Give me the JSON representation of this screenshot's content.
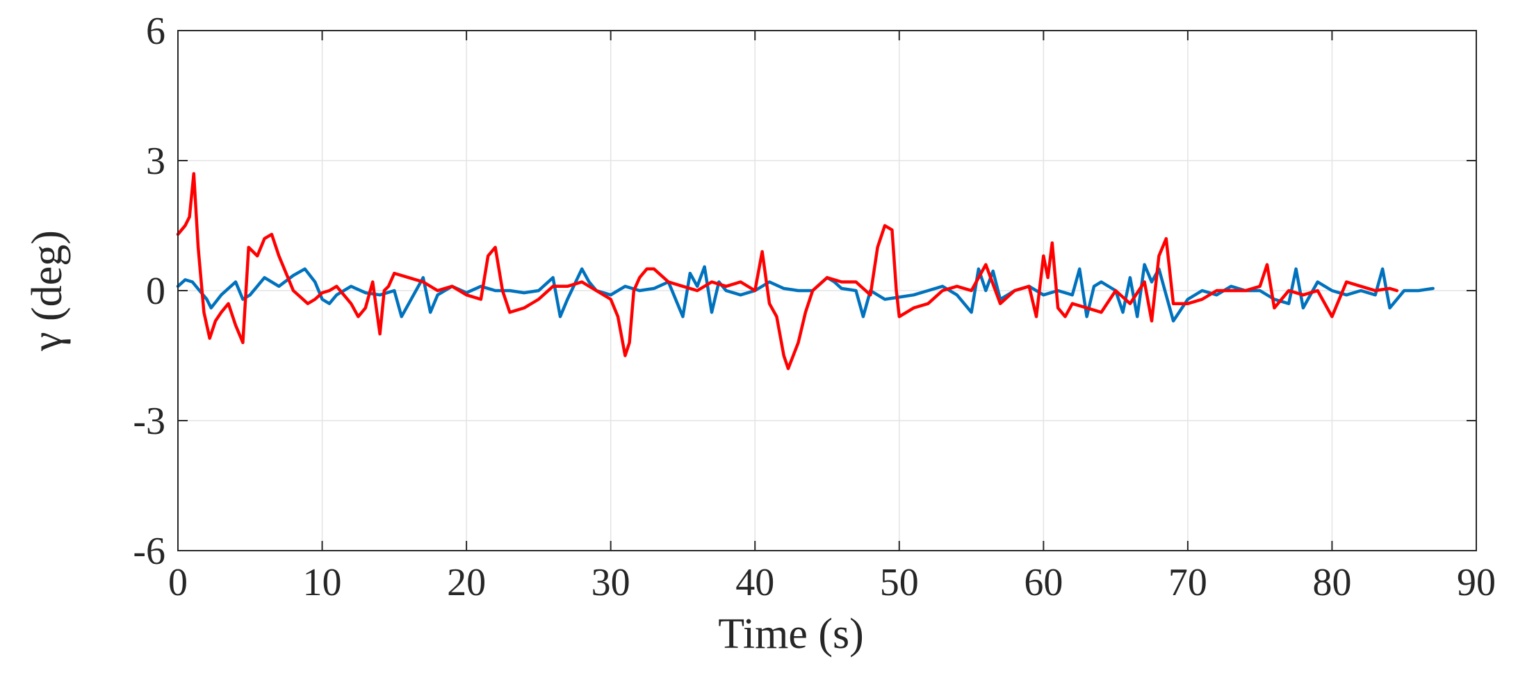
{
  "chart_data": {
    "type": "line",
    "title": "",
    "xlabel": "Time (s)",
    "ylabel": "γ (deg)",
    "xlim": [
      0,
      90
    ],
    "ylim": [
      -6,
      6
    ],
    "xticks": [
      0,
      10,
      20,
      30,
      40,
      50,
      60,
      70,
      80,
      90
    ],
    "yticks": [
      -6,
      -3,
      0,
      3,
      6
    ],
    "xtick_labels": [
      "0",
      "10",
      "20",
      "30",
      "40",
      "50",
      "60",
      "70",
      "80",
      "90"
    ],
    "ytick_labels": [
      "-6",
      "-3",
      "0",
      "3",
      "6"
    ],
    "grid": true,
    "series": [
      {
        "name": "blue",
        "color": "#0072BD",
        "x": [
          0,
          0.5,
          1,
          1.5,
          2,
          2.3,
          3,
          4,
          4.5,
          5,
          6,
          7,
          8,
          8.8,
          9.5,
          10,
          10.5,
          11,
          12,
          13,
          14,
          15,
          15.5,
          16,
          17,
          17.5,
          18,
          19,
          20,
          21,
          22,
          23,
          24,
          25,
          26,
          26.5,
          27,
          28,
          28.5,
          29,
          30,
          31,
          32,
          33,
          34,
          35,
          35.5,
          36,
          36.5,
          37,
          37.5,
          38,
          39,
          40,
          41,
          42,
          43,
          44,
          45,
          45.5,
          46,
          47,
          47.5,
          48,
          49,
          50,
          51,
          52,
          53,
          54,
          55,
          55.5,
          56,
          56.5,
          57,
          58,
          59,
          60,
          61,
          62,
          62.5,
          63,
          63.5,
          64,
          65,
          65.5,
          66,
          66.5,
          67,
          67.5,
          68,
          69,
          70,
          71,
          72,
          73,
          74,
          75,
          76,
          77,
          77.5,
          78,
          79,
          80,
          81,
          82,
          83,
          83.5,
          84,
          85,
          86,
          87
        ],
        "y": [
          0.1,
          0.25,
          0.2,
          0.0,
          -0.2,
          -0.4,
          -0.1,
          0.2,
          -0.2,
          -0.1,
          0.3,
          0.1,
          0.35,
          0.5,
          0.2,
          -0.2,
          -0.3,
          -0.1,
          0.1,
          -0.05,
          -0.1,
          0.0,
          -0.6,
          -0.3,
          0.3,
          -0.5,
          -0.1,
          0.1,
          -0.05,
          0.1,
          0.0,
          0.0,
          -0.05,
          0.0,
          0.3,
          -0.6,
          -0.2,
          0.5,
          0.2,
          0.0,
          -0.1,
          0.1,
          0.0,
          0.05,
          0.2,
          -0.6,
          0.4,
          0.1,
          0.55,
          -0.5,
          0.2,
          0.0,
          -0.1,
          0.0,
          0.2,
          0.05,
          0.0,
          0.0,
          0.3,
          0.2,
          0.05,
          0.0,
          -0.6,
          0.0,
          -0.2,
          -0.15,
          -0.1,
          0.0,
          0.1,
          -0.1,
          -0.5,
          0.5,
          0.0,
          0.45,
          -0.2,
          0.0,
          0.1,
          -0.1,
          0.0,
          -0.1,
          0.5,
          -0.6,
          0.1,
          0.2,
          0.0,
          -0.5,
          0.3,
          -0.6,
          0.6,
          0.2,
          0.5,
          -0.7,
          -0.2,
          0.0,
          -0.1,
          0.1,
          0.0,
          0.0,
          -0.2,
          -0.3,
          0.5,
          -0.4,
          0.2,
          0.0,
          -0.1,
          0.0,
          -0.1,
          0.5,
          -0.4,
          0.0,
          0.0,
          0.05
        ]
      },
      {
        "name": "red",
        "color": "#FF0000",
        "x": [
          0,
          0.5,
          0.8,
          1.1,
          1.4,
          1.8,
          2.2,
          2.6,
          3,
          3.5,
          4,
          4.5,
          4.9,
          5.5,
          6,
          6.5,
          7,
          8,
          9,
          9.5,
          10,
          10.5,
          11,
          12,
          12.5,
          13,
          13.5,
          14,
          14.3,
          14.6,
          15,
          16,
          17,
          18,
          19,
          20,
          21,
          21.5,
          22,
          22.5,
          23,
          24,
          25,
          26,
          27,
          28,
          29,
          30,
          30.5,
          31,
          31.3,
          31.6,
          32,
          32.5,
          33,
          34,
          35,
          36,
          37,
          38,
          39,
          40,
          40.5,
          41,
          41.5,
          42,
          42.3,
          43,
          43.5,
          44,
          45,
          46,
          47,
          48,
          48.5,
          49,
          49.5,
          49.8,
          50,
          50.5,
          51,
          52,
          53,
          54,
          55,
          56,
          57,
          58,
          59,
          59.5,
          60,
          60.3,
          60.6,
          61,
          61.5,
          62,
          63,
          64,
          65,
          66,
          67,
          67.5,
          68,
          68.5,
          69,
          70,
          71,
          72,
          73,
          74,
          75,
          75.5,
          76,
          77,
          78,
          79,
          80,
          81,
          82,
          83,
          84,
          84.5
        ],
        "y": [
          1.3,
          1.5,
          1.7,
          2.7,
          1.0,
          -0.5,
          -1.1,
          -0.7,
          -0.5,
          -0.3,
          -0.8,
          -1.2,
          1.0,
          0.8,
          1.2,
          1.3,
          0.8,
          0.0,
          -0.3,
          -0.2,
          -0.05,
          0.0,
          0.1,
          -0.3,
          -0.6,
          -0.4,
          0.2,
          -1.0,
          0.0,
          0.1,
          0.4,
          0.3,
          0.2,
          0.0,
          0.1,
          -0.1,
          -0.2,
          0.8,
          1.0,
          0.0,
          -0.5,
          -0.4,
          -0.2,
          0.1,
          0.1,
          0.2,
          0.0,
          -0.2,
          -0.6,
          -1.5,
          -1.2,
          0.0,
          0.3,
          0.5,
          0.5,
          0.2,
          0.1,
          0.0,
          0.2,
          0.1,
          0.2,
          0.0,
          0.9,
          -0.3,
          -0.6,
          -1.5,
          -1.8,
          -1.2,
          -0.5,
          0.0,
          0.3,
          0.2,
          0.2,
          -0.1,
          1.0,
          1.5,
          1.4,
          0.0,
          -0.6,
          -0.5,
          -0.4,
          -0.3,
          0.0,
          0.1,
          0.0,
          0.6,
          -0.3,
          0.0,
          0.1,
          -0.6,
          0.8,
          0.3,
          1.1,
          -0.4,
          -0.6,
          -0.3,
          -0.4,
          -0.5,
          0.0,
          -0.3,
          0.2,
          -0.7,
          0.8,
          1.2,
          -0.3,
          -0.3,
          -0.2,
          0.0,
          0.0,
          0.0,
          0.1,
          0.6,
          -0.4,
          0.0,
          -0.1,
          0.0,
          -0.6,
          0.2,
          0.1,
          0.0,
          0.05,
          0.0
        ]
      }
    ]
  }
}
